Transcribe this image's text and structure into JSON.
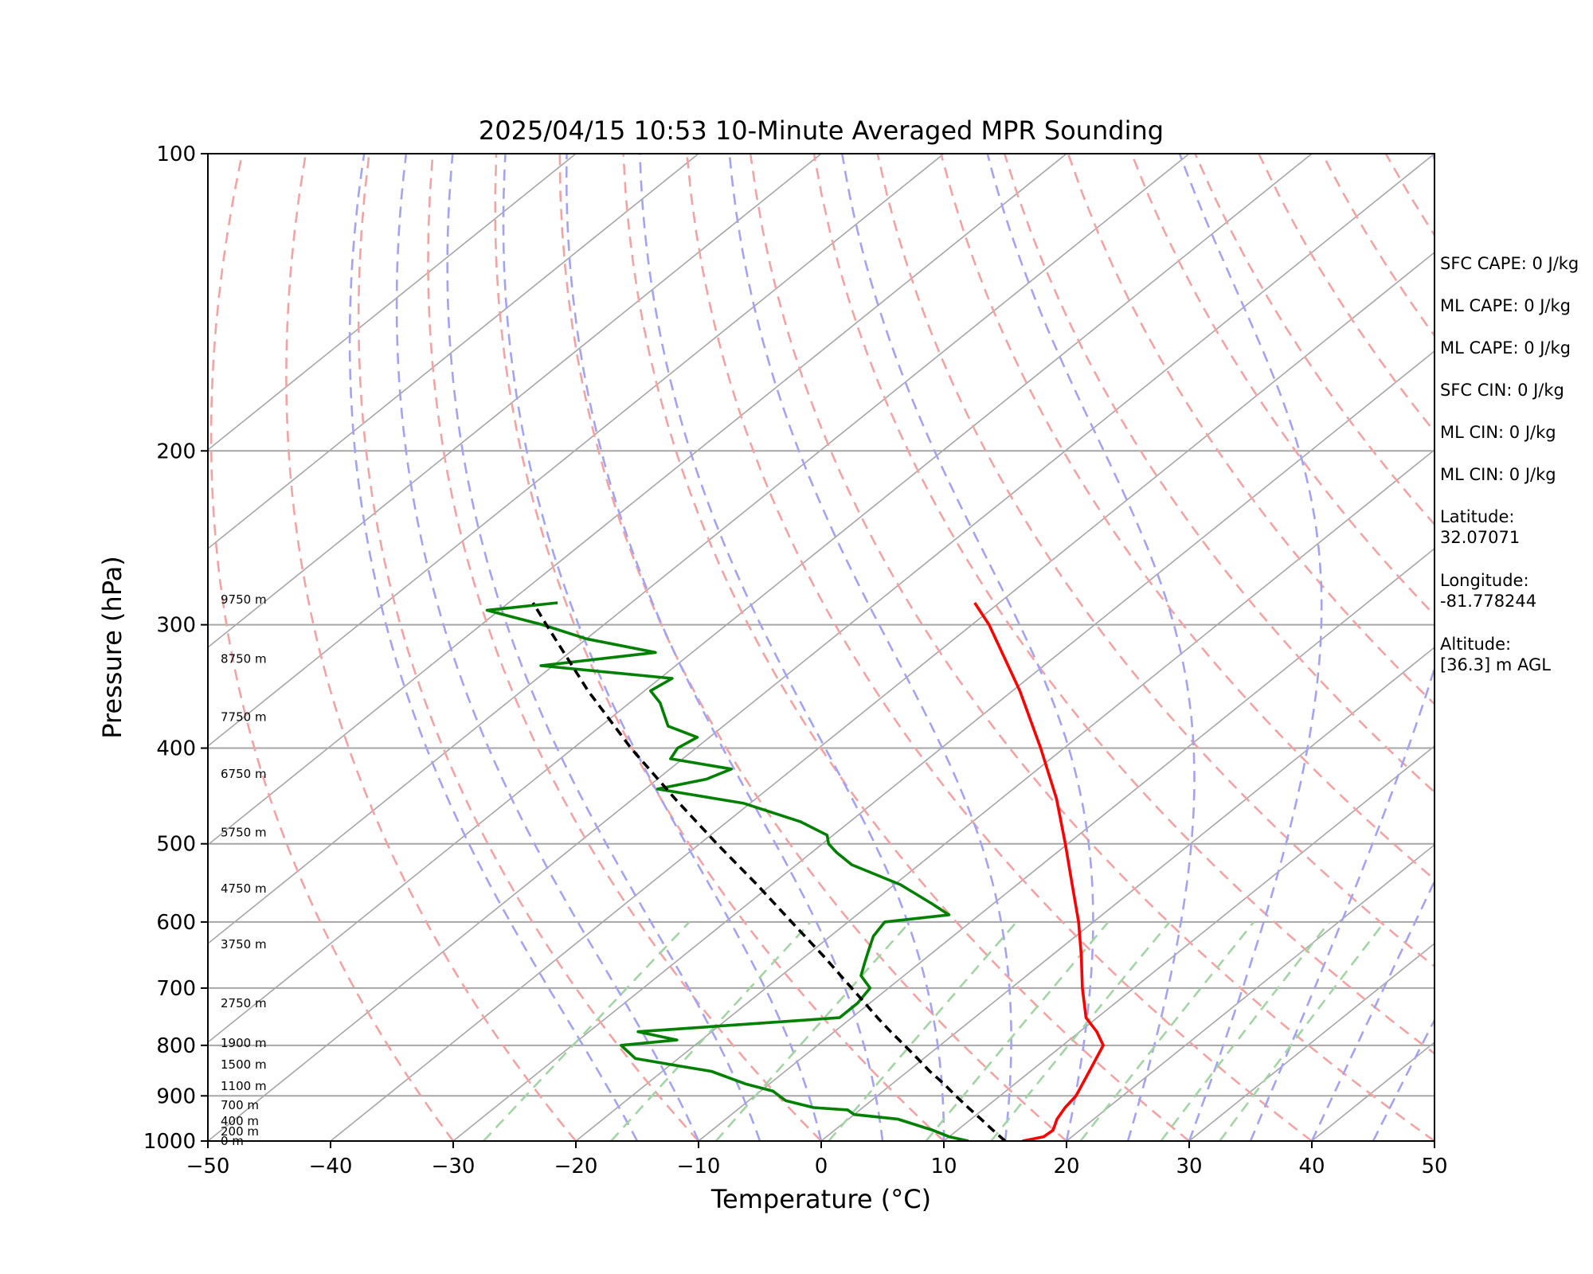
{
  "chart_data": {
    "type": "line",
    "subtype": "skew-t log-p",
    "title": "2025/04/15 10:53 10-Minute Averaged MPR Sounding",
    "xlabel": "Temperature (°C)",
    "ylabel": "Pressure (hPa)",
    "xlim": [
      -50,
      50
    ],
    "ylim": [
      1000,
      100
    ],
    "y_scale": "log",
    "x_ticks": [
      "−50",
      "−40",
      "−30",
      "−20",
      "−10",
      "0",
      "10",
      "20",
      "30",
      "40",
      "50"
    ],
    "y_ticks": [
      "100",
      "200",
      "300",
      "400",
      "500",
      "600",
      "700",
      "800",
      "900",
      "1000"
    ],
    "grid": "horizontal lines at pressure ticks",
    "colors": {
      "temperature": "#ff0000",
      "dewpoint": "#008000",
      "parcel": "#000000",
      "isotherm": "#a6a6a6",
      "dry_adiabat": "#f4a3a3",
      "moist_adiabat": "#a3a3f4",
      "mixing_ratio": "#a3d4a3"
    },
    "series": [
      {
        "key": "temperature",
        "pressure": [
          1000,
          990,
          975,
          950,
          925,
          900,
          850,
          800,
          775,
          750,
          700,
          650,
          600,
          550,
          500,
          450,
          400,
          350,
          300,
          285
        ],
        "values": [
          16.4,
          17.7,
          17.8,
          17.0,
          16.5,
          16.2,
          14.8,
          13.3,
          11.4,
          9.1,
          5.8,
          2.5,
          -1.2,
          -5.5,
          -10.2,
          -15.5,
          -21.9,
          -29.4,
          -38.6,
          -42.0
        ]
      },
      {
        "key": "dewpoint",
        "pressure": [
          1000,
          990,
          975,
          950,
          940,
          930,
          925,
          910,
          890,
          875,
          850,
          840,
          825,
          800,
          790,
          775,
          750,
          725,
          700,
          680,
          660,
          640,
          620,
          600,
          590,
          575,
          550,
          525,
          510,
          500,
          490,
          475,
          455,
          440,
          430,
          420,
          410,
          400,
          390,
          380,
          360,
          350,
          340,
          330,
          320,
          310,
          300,
          295,
          290,
          285
        ],
        "values": [
          12.0,
          10.0,
          8.0,
          4.0,
          0.0,
          -1.0,
          -4.0,
          -7.0,
          -9.0,
          -12.0,
          -16.0,
          -19.0,
          -23.5,
          -26.0,
          -22.0,
          -26.0,
          -11.0,
          -11.0,
          -11.5,
          -13.5,
          -14.5,
          -15.5,
          -16.5,
          -17.0,
          -12.5,
          -15.0,
          -19.5,
          -25.5,
          -28.0,
          -29.5,
          -30.5,
          -34.0,
          -40.5,
          -49.0,
          -46.0,
          -45.0,
          -51.0,
          -51.5,
          -51.0,
          -54.5,
          -57.5,
          -59.5,
          -59.0,
          -71.0,
          -63.0,
          -70.0,
          -75.0,
          -78.0,
          -81.0,
          -76.0
        ]
      },
      {
        "key": "parcel",
        "pressure": [
          1000,
          975,
          950,
          925,
          900,
          875,
          850,
          825,
          800,
          775,
          750,
          725,
          700,
          650,
          600,
          550,
          500,
          450,
          400,
          350,
          300,
          285
        ],
        "values": [
          15.0,
          12.9,
          10.8,
          8.6,
          6.4,
          4.2,
          1.8,
          -0.5,
          -2.9,
          -5.4,
          -7.9,
          -10.4,
          -13.0,
          -18.5,
          -24.6,
          -31.2,
          -38.6,
          -46.6,
          -55.3,
          -64.6,
          -74.7,
          -78.0
        ]
      }
    ],
    "height_labels": [
      "0 m",
      "200 m",
      "400 m",
      "700 m",
      "1100 m",
      "1500 m",
      "1900 m",
      "2750 m",
      "3750 m",
      "4750 m",
      "5750 m",
      "6750 m",
      "7750 m",
      "8750 m",
      "9750 m"
    ],
    "height_label_pressures": [
      1000,
      978,
      955,
      920,
      880,
      837,
      796,
      725,
      632,
      555,
      487,
      425,
      372,
      325,
      283
    ]
  },
  "side_panel": {
    "items": [
      "SFC CAPE: 0 J/kg",
      "ML CAPE: 0 J/kg",
      "ML CAPE: 0 J/kg",
      "SFC CIN: 0 J/kg",
      "ML CIN: 0 J/kg",
      "ML CIN: 0 J/kg",
      "Latitude:\n32.07071",
      "Longitude:\n-81.778244",
      "Altitude:\n[36.3] m AGL"
    ]
  }
}
